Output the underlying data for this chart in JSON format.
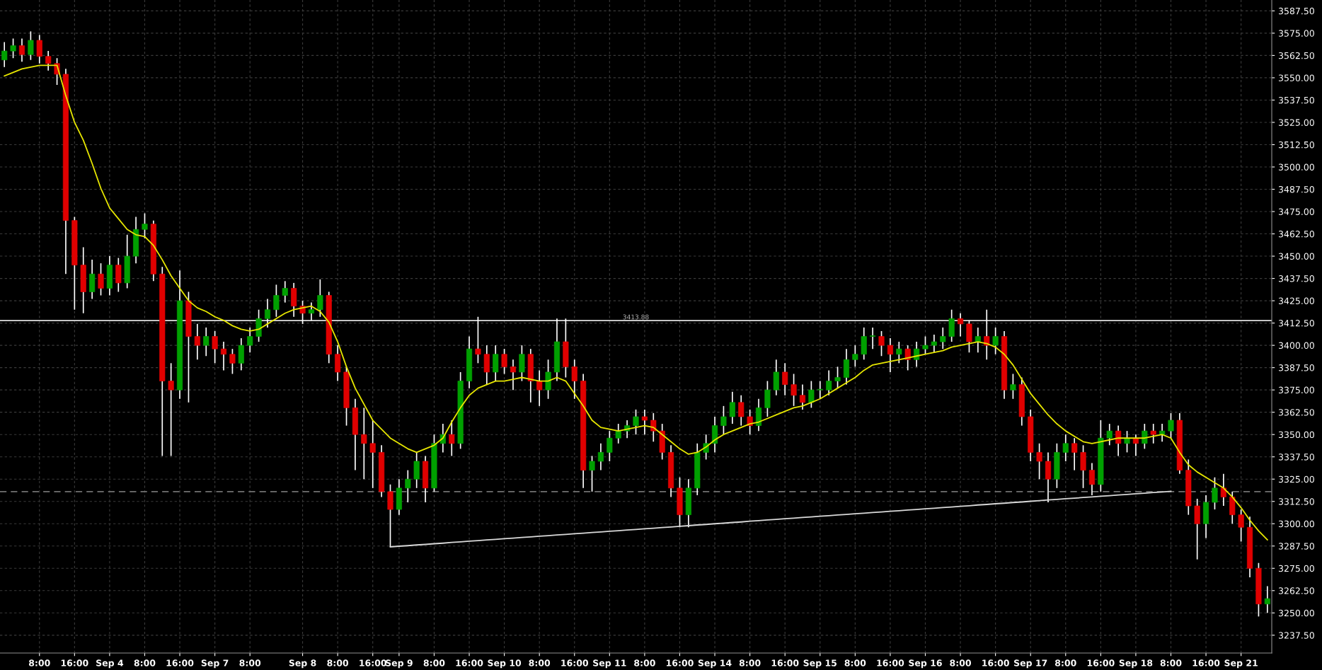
{
  "chart_data": {
    "type": "candlestick",
    "categories": [
      null,
      null,
      null,
      null,
      "8:00",
      null,
      null,
      null,
      "16:00",
      null,
      null,
      null,
      "Sep 4",
      null,
      null,
      null,
      "8:00",
      null,
      null,
      null,
      "16:00",
      null,
      null,
      null,
      "Sep 7",
      null,
      null,
      null,
      "8:00",
      null,
      null,
      null,
      null,
      null,
      "Sep 8",
      null,
      null,
      null,
      "8:00",
      null,
      null,
      null,
      "16:00",
      null,
      null,
      "Sep 9",
      null,
      null,
      null,
      "8:00",
      null,
      null,
      null,
      "16:00",
      null,
      null,
      null,
      "Sep 10",
      null,
      null,
      null,
      "8:00",
      null,
      null,
      null,
      "16:00",
      null,
      null,
      null,
      "Sep 11",
      null,
      null,
      null,
      "8:00",
      null,
      null,
      null,
      "16:00",
      null,
      null,
      null,
      "Sep 14",
      null,
      null,
      null,
      "8:00",
      null,
      null,
      null,
      "16:00",
      null,
      null,
      null,
      "Sep 15",
      null,
      null,
      null,
      "8:00",
      null,
      null,
      null,
      "16:00",
      null,
      null,
      null,
      "Sep 16",
      null,
      null,
      null,
      "8:00",
      null,
      null,
      null,
      "16:00",
      null,
      null,
      null,
      "Sep 17",
      null,
      null,
      null,
      "8:00",
      null,
      null,
      null,
      "16:00",
      null,
      null,
      null,
      "Sep 18",
      null,
      null,
      null,
      "8:00",
      null,
      null,
      null,
      "16:00",
      null,
      null,
      null,
      "Sep 21",
      null,
      null,
      null
    ],
    "ohlc": [
      [
        3560,
        3570,
        3556,
        3565
      ],
      [
        3565,
        3572,
        3561,
        3568
      ],
      [
        3568,
        3572,
        3559,
        3563
      ],
      [
        3563,
        3576,
        3560,
        3571
      ],
      [
        3571,
        3574,
        3558,
        3562
      ],
      [
        3562,
        3565,
        3554,
        3558
      ],
      [
        3558,
        3561,
        3546,
        3552
      ],
      [
        3552,
        3555,
        3440,
        3470
      ],
      [
        3470,
        3472,
        3420,
        3445
      ],
      [
        3445,
        3455,
        3418,
        3430
      ],
      [
        3430,
        3448,
        3426,
        3440
      ],
      [
        3440,
        3446,
        3428,
        3432
      ],
      [
        3432,
        3450,
        3428,
        3445
      ],
      [
        3445,
        3449,
        3430,
        3435
      ],
      [
        3435,
        3462,
        3432,
        3450
      ],
      [
        3450,
        3472,
        3446,
        3465
      ],
      [
        3465,
        3474,
        3460,
        3468
      ],
      [
        3468,
        3470,
        3436,
        3440
      ],
      [
        3440,
        3444,
        3338,
        3380
      ],
      [
        3380,
        3390,
        3338,
        3375
      ],
      [
        3375,
        3442,
        3370,
        3425
      ],
      [
        3425,
        3430,
        3368,
        3405
      ],
      [
        3405,
        3412,
        3392,
        3400
      ],
      [
        3400,
        3410,
        3394,
        3405
      ],
      [
        3405,
        3408,
        3390,
        3398
      ],
      [
        3398,
        3402,
        3386,
        3395
      ],
      [
        3395,
        3398,
        3384,
        3390
      ],
      [
        3390,
        3404,
        3386,
        3400
      ],
      [
        3400,
        3410,
        3396,
        3405
      ],
      [
        3405,
        3420,
        3402,
        3415
      ],
      [
        3415,
        3426,
        3410,
        3420
      ],
      [
        3420,
        3434,
        3416,
        3428
      ],
      [
        3428,
        3436,
        3424,
        3432
      ],
      [
        3432,
        3435,
        3416,
        3422
      ],
      [
        3422,
        3425,
        3412,
        3418
      ],
      [
        3418,
        3424,
        3414,
        3420
      ],
      [
        3420,
        3437,
        3416,
        3428
      ],
      [
        3428,
        3430,
        3390,
        3395
      ],
      [
        3395,
        3400,
        3380,
        3385
      ],
      [
        3385,
        3388,
        3355,
        3365
      ],
      [
        3365,
        3370,
        3330,
        3350
      ],
      [
        3350,
        3365,
        3325,
        3345
      ],
      [
        3345,
        3358,
        3320,
        3340
      ],
      [
        3340,
        3344,
        3315,
        3318
      ],
      [
        3318,
        3322,
        3287,
        3308
      ],
      [
        3308,
        3325,
        3305,
        3320
      ],
      [
        3320,
        3330,
        3312,
        3325
      ],
      [
        3325,
        3340,
        3320,
        3335
      ],
      [
        3335,
        3338,
        3312,
        3320
      ],
      [
        3320,
        3350,
        3318,
        3345
      ],
      [
        3345,
        3356,
        3340,
        3350
      ],
      [
        3350,
        3358,
        3338,
        3345
      ],
      [
        3345,
        3385,
        3342,
        3380
      ],
      [
        3380,
        3405,
        3376,
        3398
      ],
      [
        3398,
        3416,
        3390,
        3395
      ],
      [
        3395,
        3400,
        3378,
        3385
      ],
      [
        3385,
        3400,
        3380,
        3395
      ],
      [
        3395,
        3398,
        3384,
        3388
      ],
      [
        3388,
        3392,
        3375,
        3385
      ],
      [
        3385,
        3400,
        3380,
        3395
      ],
      [
        3395,
        3398,
        3368,
        3380
      ],
      [
        3380,
        3386,
        3366,
        3375
      ],
      [
        3375,
        3392,
        3370,
        3385
      ],
      [
        3385,
        3415,
        3380,
        3402
      ],
      [
        3402,
        3415,
        3382,
        3388
      ],
      [
        3388,
        3392,
        3370,
        3380
      ],
      [
        3380,
        3384,
        3320,
        3330
      ],
      [
        3330,
        3338,
        3318,
        3335
      ],
      [
        3335,
        3345,
        3330,
        3340
      ],
      [
        3340,
        3352,
        3335,
        3348
      ],
      [
        3348,
        3356,
        3345,
        3352
      ],
      [
        3352,
        3358,
        3348,
        3355
      ],
      [
        3355,
        3364,
        3350,
        3360
      ],
      [
        3360,
        3364,
        3350,
        3358
      ],
      [
        3358,
        3362,
        3346,
        3352
      ],
      [
        3352,
        3356,
        3336,
        3340
      ],
      [
        3340,
        3344,
        3315,
        3320
      ],
      [
        3320,
        3326,
        3298,
        3305
      ],
      [
        3305,
        3325,
        3298,
        3320
      ],
      [
        3320,
        3345,
        3316,
        3340
      ],
      [
        3340,
        3350,
        3336,
        3345
      ],
      [
        3345,
        3360,
        3340,
        3355
      ],
      [
        3355,
        3366,
        3350,
        3360
      ],
      [
        3360,
        3374,
        3356,
        3368
      ],
      [
        3368,
        3372,
        3355,
        3360
      ],
      [
        3360,
        3364,
        3350,
        3355
      ],
      [
        3355,
        3370,
        3352,
        3365
      ],
      [
        3365,
        3380,
        3360,
        3375
      ],
      [
        3375,
        3392,
        3372,
        3385
      ],
      [
        3385,
        3390,
        3372,
        3378
      ],
      [
        3378,
        3384,
        3366,
        3372
      ],
      [
        3372,
        3378,
        3364,
        3368
      ],
      [
        3368,
        3380,
        3365,
        3375
      ],
      [
        3375,
        3380,
        3370,
        3375
      ],
      [
        3375,
        3386,
        3372,
        3380
      ],
      [
        3380,
        3388,
        3376,
        3382
      ],
      [
        3382,
        3398,
        3378,
        3392
      ],
      [
        3392,
        3400,
        3388,
        3395
      ],
      [
        3395,
        3410,
        3392,
        3405
      ],
      [
        3405,
        3410,
        3398,
        3405
      ],
      [
        3405,
        3408,
        3394,
        3400
      ],
      [
        3400,
        3404,
        3385,
        3395
      ],
      [
        3395,
        3402,
        3390,
        3398
      ],
      [
        3398,
        3400,
        3386,
        3392
      ],
      [
        3392,
        3402,
        3388,
        3398
      ],
      [
        3398,
        3405,
        3395,
        3400
      ],
      [
        3400,
        3406,
        3396,
        3402
      ],
      [
        3402,
        3410,
        3398,
        3405
      ],
      [
        3405,
        3420,
        3402,
        3415
      ],
      [
        3415,
        3418,
        3405,
        3412
      ],
      [
        3412,
        3414,
        3396,
        3402
      ],
      [
        3402,
        3410,
        3396,
        3405
      ],
      [
        3405,
        3420,
        3392,
        3400
      ],
      [
        3400,
        3410,
        3395,
        3405
      ],
      [
        3405,
        3408,
        3370,
        3375
      ],
      [
        3375,
        3384,
        3370,
        3378
      ],
      [
        3378,
        3382,
        3355,
        3360
      ],
      [
        3360,
        3364,
        3335,
        3340
      ],
      [
        3340,
        3345,
        3325,
        3335
      ],
      [
        3335,
        3340,
        3312,
        3325
      ],
      [
        3325,
        3345,
        3320,
        3340
      ],
      [
        3340,
        3350,
        3335,
        3345
      ],
      [
        3345,
        3348,
        3330,
        3340
      ],
      [
        3340,
        3344,
        3320,
        3330
      ],
      [
        3330,
        3334,
        3316,
        3322
      ],
      [
        3322,
        3358,
        3318,
        3348
      ],
      [
        3348,
        3356,
        3344,
        3352
      ],
      [
        3352,
        3355,
        3338,
        3345
      ],
      [
        3345,
        3352,
        3340,
        3348
      ],
      [
        3348,
        3350,
        3338,
        3345
      ],
      [
        3345,
        3356,
        3342,
        3352
      ],
      [
        3352,
        3356,
        3345,
        3350
      ],
      [
        3350,
        3356,
        3346,
        3352
      ],
      [
        3352,
        3362,
        3348,
        3358
      ],
      [
        3358,
        3362,
        3328,
        3330
      ],
      [
        3330,
        3336,
        3305,
        3310
      ],
      [
        3310,
        3314,
        3280,
        3300
      ],
      [
        3300,
        3316,
        3292,
        3312
      ],
      [
        3312,
        3326,
        3308,
        3320
      ],
      [
        3320,
        3328,
        3310,
        3315
      ],
      [
        3315,
        3318,
        3300,
        3305
      ],
      [
        3305,
        3308,
        3290,
        3298
      ],
      [
        3298,
        3304,
        3270,
        3275
      ],
      [
        3275,
        3278,
        3248,
        3255
      ],
      [
        3255,
        3265,
        3250,
        3258
      ]
    ],
    "series": [
      {
        "type": "line",
        "color": "#e6e600",
        "values": [
          3551,
          3553,
          3555,
          3556,
          3557,
          3557,
          3557,
          3540,
          3525,
          3515,
          3502,
          3488,
          3477,
          3471,
          3465,
          3462,
          3461,
          3456,
          3448,
          3439,
          3432,
          3425,
          3421,
          3419,
          3416,
          3414,
          3411,
          3409,
          3408,
          3409,
          3412,
          3415,
          3418,
          3420,
          3421,
          3422,
          3419,
          3413,
          3402,
          3388,
          3376,
          3367,
          3358,
          3353,
          3348,
          3345,
          3342,
          3340,
          3342,
          3344,
          3348,
          3357,
          3365,
          3372,
          3376,
          3378,
          3380,
          3380,
          3381,
          3382,
          3381,
          3380,
          3380,
          3382,
          3380,
          3373,
          3366,
          3358,
          3354,
          3353,
          3352,
          3353,
          3354,
          3355,
          3354,
          3350,
          3346,
          3342,
          3339,
          3340,
          3343,
          3347,
          3350,
          3352,
          3354,
          3356,
          3357,
          3359,
          3361,
          3363,
          3365,
          3366,
          3368,
          3370,
          3373,
          3376,
          3379,
          3382,
          3386,
          3389,
          3390,
          3391,
          3392,
          3393,
          3394,
          3395,
          3396,
          3397,
          3399,
          3400,
          3401,
          3402,
          3401,
          3399,
          3395,
          3389,
          3381,
          3373,
          3367,
          3361,
          3356,
          3352,
          3349,
          3346,
          3345,
          3346,
          3347,
          3348,
          3348,
          3348,
          3348,
          3349,
          3350,
          3348,
          3340,
          3333,
          3329,
          3326,
          3323,
          3320,
          3315,
          3309,
          3302,
          3296,
          3291
        ]
      },
      {
        "type": "line",
        "color": "#d8d8d8",
        "values": [
          null,
          null,
          null,
          null,
          null,
          null,
          null,
          null,
          null,
          null,
          null,
          null,
          null,
          null,
          null,
          null,
          null,
          null,
          null,
          null,
          null,
          null,
          null,
          null,
          null,
          null,
          null,
          null,
          null,
          null,
          null,
          null,
          null,
          null,
          null,
          null,
          null,
          null,
          null,
          null,
          null,
          null,
          null,
          null,
          3287.0,
          3287.4,
          3287.7,
          3288.1,
          3288.4,
          3288.8,
          3289.1,
          3289.5,
          3289.8,
          3290.2,
          3290.5,
          3290.9,
          3291.2,
          3291.6,
          3291.9,
          3292.3,
          3292.6,
          3293.0,
          3293.3,
          3293.7,
          3294.0,
          3294.4,
          3294.7,
          3295.1,
          3295.4,
          3295.8,
          3296.1,
          3296.5,
          3296.8,
          3297.2,
          3297.5,
          3297.9,
          3298.2,
          3298.6,
          3298.9,
          3299.3,
          3299.6,
          3300.0,
          3300.3,
          3300.7,
          3301.0,
          3301.4,
          3301.7,
          3302.1,
          3302.4,
          3302.8,
          3303.1,
          3303.5,
          3303.8,
          3304.2,
          3304.5,
          3304.9,
          3305.2,
          3305.6,
          3305.9,
          3306.3,
          3306.6,
          3307.0,
          3307.3,
          3307.7,
          3308.0,
          3308.4,
          3308.7,
          3309.1,
          3309.4,
          3309.8,
          3310.1,
          3310.5,
          3310.8,
          3311.2,
          3311.5,
          3311.9,
          3312.2,
          3312.6,
          3312.9,
          3313.3,
          3313.6,
          3314.0,
          3314.3,
          3314.7,
          3315.0,
          3315.4,
          3315.7,
          3316.1,
          3316.4,
          3316.8,
          3317.1,
          3317.5,
          3317.8,
          3318.2,
          null,
          null,
          null,
          null,
          null,
          null,
          null,
          null,
          null,
          null,
          null
        ]
      }
    ],
    "ref_lines": [
      {
        "axis": "y",
        "value": 3413.88,
        "label": "3413.88",
        "color": "#e0e0e0",
        "line_style": "solid"
      },
      {
        "axis": "y",
        "value": 3318,
        "color": "#707070",
        "line_style": "dashed"
      }
    ],
    "ylim": [
      3227.5,
      3593.6
    ],
    "yticks": [
      {
        "value": 3237.5,
        "label": "3237.50"
      },
      {
        "value": 3250,
        "label": "3250.00"
      },
      {
        "value": 3262.5,
        "label": "3262.50"
      },
      {
        "value": 3275,
        "label": "3275.00"
      },
      {
        "value": 3287.5,
        "label": "3287.50"
      },
      {
        "value": 3300,
        "label": "3300.00"
      },
      {
        "value": 3312.5,
        "label": "3312.50"
      },
      {
        "value": 3325,
        "label": "3325.00"
      },
      {
        "value": 3337.5,
        "label": "3337.50"
      },
      {
        "value": 3350,
        "label": "3350.00"
      },
      {
        "value": 3362.5,
        "label": "3362.50"
      },
      {
        "value": 3375,
        "label": "3375.00"
      },
      {
        "value": 3387.5,
        "label": "3387.50"
      },
      {
        "value": 3400,
        "label": "3400.00"
      },
      {
        "value": 3412.5,
        "label": "3412.50"
      },
      {
        "value": 3425,
        "label": "3425.00"
      },
      {
        "value": 3437.5,
        "label": "3437.50"
      },
      {
        "value": 3450,
        "label": "3450.00"
      },
      {
        "value": 3462.5,
        "label": "3462.50"
      },
      {
        "value": 3475,
        "label": "3475.00"
      },
      {
        "value": 3487.5,
        "label": "3487.50"
      },
      {
        "value": 3500,
        "label": "3500.00"
      },
      {
        "value": 3512.5,
        "label": "3512.50"
      },
      {
        "value": 3525,
        "label": "3525.00"
      },
      {
        "value": 3537.5,
        "label": "3537.50"
      },
      {
        "value": 3550,
        "label": "3550.00"
      },
      {
        "value": 3562.5,
        "label": "3562.50"
      },
      {
        "value": 3575,
        "label": "3575.00"
      },
      {
        "value": 3587.5,
        "label": "3587.50"
      }
    ],
    "grid": true,
    "legend": false
  }
}
